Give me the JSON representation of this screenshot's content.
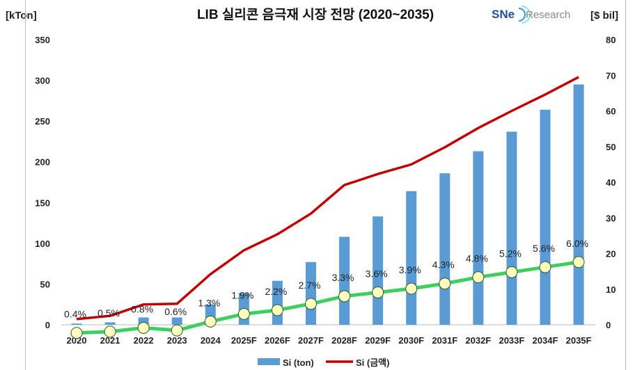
{
  "chart_data": {
    "type": "bar+line",
    "title": "LIB 실리콘 음극재 시장 전망 (2020~2035)",
    "logo": "SNE Research",
    "ylabel_left": "[kTon]",
    "ylabel_right": "[$ bil]",
    "ylim_left": [
      0,
      350
    ],
    "ylim_right": [
      0,
      80
    ],
    "yticks_left": [
      "0",
      "50",
      "100",
      "150",
      "200",
      "250",
      "300",
      "350"
    ],
    "yticks_right": [
      "0",
      "10",
      "20",
      "30",
      "40",
      "50",
      "60",
      "70",
      "80"
    ],
    "grid": false,
    "legend_position": "bottom",
    "categories": [
      "2020",
      "2021",
      "2022",
      "2023",
      "2024",
      "2025F",
      "2026F",
      "2027F",
      "2028F",
      "2029F",
      "2030F",
      "2031F",
      "2032F",
      "2033F",
      "2034F",
      "2035F"
    ],
    "series": [
      {
        "name": "Si (ton)",
        "type": "bar",
        "axis": "left",
        "color": "#5b9bd5",
        "values": [
          1.5,
          3,
          9,
          9,
          25,
          39,
          54,
          77,
          108,
          133,
          164,
          186,
          213,
          237,
          264,
          295
        ]
      },
      {
        "name": "Si (금액)",
        "type": "line",
        "axis": "right",
        "color": "#c00000",
        "values": [
          1.6,
          2.5,
          5.7,
          5.9,
          14.2,
          20.9,
          25.4,
          31.2,
          39.2,
          42.3,
          45.0,
          49.8,
          55.2,
          60.0,
          64.6,
          69.5
        ]
      },
      {
        "type": "line",
        "axis": "hidden",
        "color": "#3fcf5f",
        "marker_color": "#ffffc0",
        "values": [
          0.4,
          0.5,
          0.8,
          0.6,
          1.3,
          1.9,
          2.2,
          2.7,
          3.3,
          3.6,
          3.9,
          4.3,
          4.8,
          5.2,
          5.6,
          6.0
        ],
        "labels": [
          "0.4%",
          "0.5%",
          "0.8%",
          "0.6%",
          "1.3%",
          "1.9%",
          "2.2%",
          "2.7%",
          "3.3%",
          "3.6%",
          "3.9%",
          "4.3%",
          "4.8%",
          "5.2%",
          "5.6%",
          "6.0%"
        ]
      }
    ]
  }
}
